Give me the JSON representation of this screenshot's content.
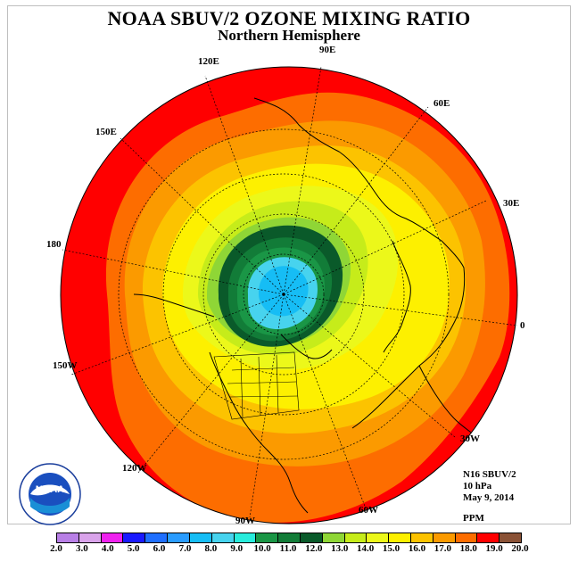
{
  "title": "NOAA SBUV/2 OZONE MIXING RATIO",
  "subtitle": "Northern Hemisphere",
  "longitude_labels": [
    "0",
    "30E",
    "60E",
    "90E",
    "120E",
    "150E",
    "180",
    "150W",
    "120W",
    "90W",
    "60W",
    "30W"
  ],
  "info": {
    "instrument": "N16 SBUV/2",
    "pressure_level": "10 hPa",
    "date": "May 9, 2014",
    "unit": "PPM"
  },
  "logo": {
    "text": "NOAA"
  },
  "colorbar": {
    "labels": [
      "2.0",
      "3.0",
      "4.0",
      "5.0",
      "6.0",
      "7.0",
      "8.0",
      "9.0",
      "10.0",
      "11.0",
      "12.0",
      "13.0",
      "14.0",
      "15.0",
      "16.0",
      "17.0",
      "18.0",
      "19.0",
      "20.0"
    ],
    "colors": [
      "#b87fe6",
      "#d9a3ea",
      "#ef22ef",
      "#1a1aff",
      "#1f6fff",
      "#2a9cff",
      "#16bdf5",
      "#47d3ee",
      "#28ecdc",
      "#1a9646",
      "#127c38",
      "#0a5a2a",
      "#8fd636",
      "#c6ec1a",
      "#ecf81a",
      "#fdf000",
      "#fcc300",
      "#fb9a00",
      "#fd6d00",
      "#ff0000",
      "#8a5236"
    ]
  },
  "map_levels": [
    {
      "color": "#ff0000",
      "value": 19.0
    },
    {
      "color": "#fd6d00",
      "value": 18.0
    },
    {
      "color": "#fb9a00",
      "value": 17.0
    },
    {
      "color": "#fcc300",
      "value": 16.0
    },
    {
      "color": "#fdf000",
      "value": 15.0
    },
    {
      "color": "#ecf81a",
      "value": 14.0
    },
    {
      "color": "#c6ec1a",
      "value": 13.0
    },
    {
      "color": "#8fd636",
      "value": 12.5
    },
    {
      "color": "#0a5a2a",
      "value": 12.0
    },
    {
      "color": "#127c38",
      "value": 11.0
    },
    {
      "color": "#1a9646",
      "value": 10.0
    },
    {
      "color": "#47d3ee",
      "value": 9.0
    },
    {
      "color": "#16bdf5",
      "value": 8.0
    }
  ]
}
